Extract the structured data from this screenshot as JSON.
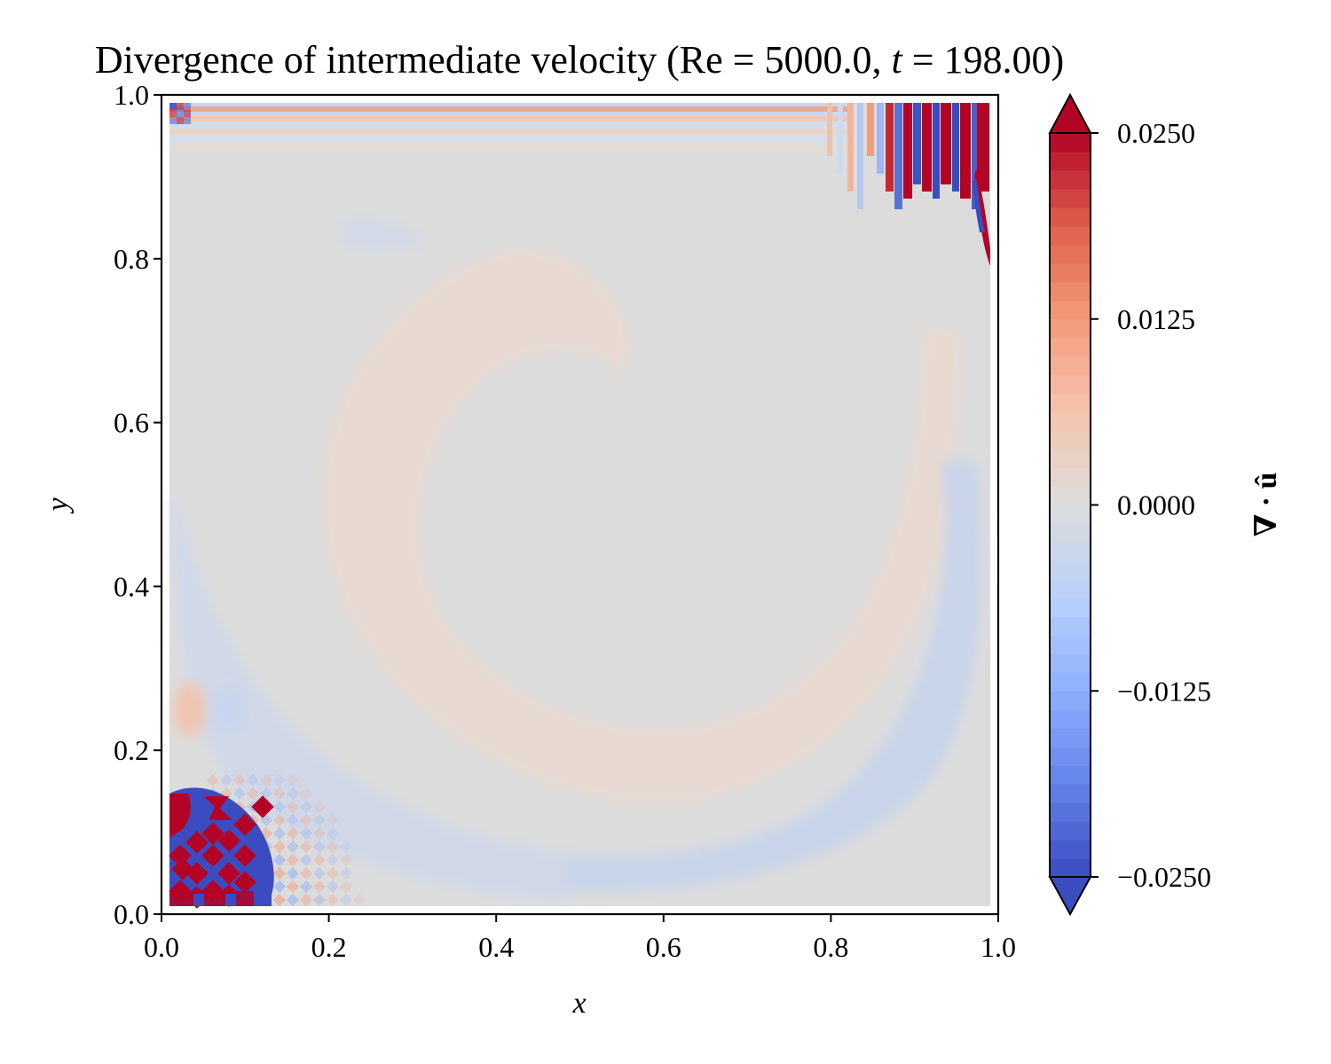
{
  "chart_data": {
    "type": "heatmap",
    "title": "Divergence of intermediate velocity (Re = 5000.0, t = 198.00)",
    "title_parts": {
      "prefix": "Divergence of intermediate velocity (",
      "re_sym": "Re",
      "eq": " = ",
      "re_val": "5000.0",
      "sep": ", ",
      "t_sym": "t",
      "t_val": "198.00",
      "suffix": ")"
    },
    "xlabel": "x",
    "ylabel": "y",
    "xlim": [
      0.0,
      1.0
    ],
    "ylim": [
      0.0,
      1.0
    ],
    "xticks": [
      "0.0",
      "0.2",
      "0.4",
      "0.6",
      "0.8",
      "1.0"
    ],
    "yticks": [
      "0.0",
      "0.2",
      "0.4",
      "0.6",
      "0.8",
      "1.0"
    ],
    "colormap": "coolwarm",
    "colorbar": {
      "label": "∇ · û",
      "range": [
        -0.025,
        0.025
      ],
      "extend": "both",
      "ticks": [
        "−0.0250",
        "−0.0125",
        "0.0000",
        "0.0125",
        "0.0250"
      ],
      "tick_values": [
        -0.025,
        -0.0125,
        0.0,
        0.0125,
        0.025
      ],
      "levels": 40
    },
    "field_features": [
      {
        "region": "bottom-left corner (x 0.0–0.12, y 0.0–0.15)",
        "description": "strong alternating checkerboard oscillations saturating at ±0.025"
      },
      {
        "region": "bottom-left checker fringe (x 0.0–0.25, y 0.0–0.25)",
        "description": "weaker checkerboard pattern"
      },
      {
        "region": "top-right corner (x 0.84–0.99, y 0.8–1.0)",
        "description": "strong vertical stripe oscillations saturating at ±0.025"
      },
      {
        "region": "top edge (y ≈ 0.93–0.99)",
        "description": "thin alternating horizontal stripes"
      },
      {
        "region": "C-shaped band around vortex center",
        "description": "weak positive divergence ≈ +0.002"
      },
      {
        "region": "right wall and bottom region",
        "description": "weak negative divergence ≈ −0.003"
      },
      {
        "region": "interior",
        "description": "near zero"
      }
    ],
    "colors": {
      "neutral": "#dcdcdc",
      "min": "#3b4cc0",
      "max": "#b40426"
    }
  }
}
